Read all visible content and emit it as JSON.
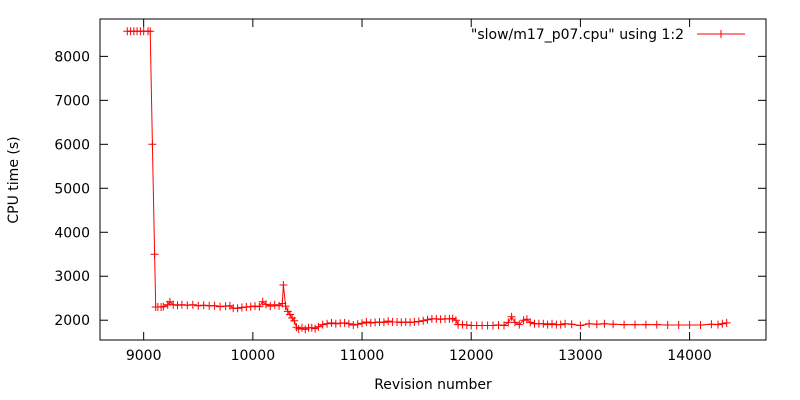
{
  "chart_data": {
    "type": "line",
    "title": "",
    "xlabel": "Revision number",
    "ylabel": "CPU time (s)",
    "xlim": [
      8600,
      14700
    ],
    "ylim": [
      1550,
      8850
    ],
    "xticks": [
      9000,
      10000,
      11000,
      12000,
      13000,
      14000
    ],
    "yticks": [
      2000,
      3000,
      4000,
      5000,
      6000,
      7000,
      8000
    ],
    "grid": false,
    "legend_position": "top-right",
    "series": [
      {
        "name": "\"slow/m17_p07.cpu\" using 1:2",
        "color": "#ff0000",
        "marker": "plus",
        "points": [
          [
            8850,
            8570
          ],
          [
            8880,
            8570
          ],
          [
            8910,
            8570
          ],
          [
            8940,
            8570
          ],
          [
            8970,
            8570
          ],
          [
            9000,
            8570
          ],
          [
            9040,
            8570
          ],
          [
            9060,
            8570
          ],
          [
            9080,
            6000
          ],
          [
            9100,
            3500
          ],
          [
            9110,
            2300
          ],
          [
            9130,
            2300
          ],
          [
            9160,
            2300
          ],
          [
            9180,
            2310
          ],
          [
            9220,
            2350
          ],
          [
            9240,
            2420
          ],
          [
            9270,
            2350
          ],
          [
            9310,
            2340
          ],
          [
            9350,
            2350
          ],
          [
            9400,
            2340
          ],
          [
            9450,
            2350
          ],
          [
            9500,
            2330
          ],
          [
            9550,
            2340
          ],
          [
            9600,
            2330
          ],
          [
            9650,
            2330
          ],
          [
            9700,
            2310
          ],
          [
            9750,
            2320
          ],
          [
            9790,
            2330
          ],
          [
            9820,
            2270
          ],
          [
            9860,
            2270
          ],
          [
            9900,
            2290
          ],
          [
            9940,
            2300
          ],
          [
            9980,
            2310
          ],
          [
            10020,
            2320
          ],
          [
            10060,
            2310
          ],
          [
            10090,
            2420
          ],
          [
            10120,
            2360
          ],
          [
            10160,
            2320
          ],
          [
            10200,
            2350
          ],
          [
            10240,
            2330
          ],
          [
            10270,
            2380
          ],
          [
            10280,
            2800
          ],
          [
            10300,
            2320
          ],
          [
            10320,
            2200
          ],
          [
            10340,
            2130
          ],
          [
            10360,
            2050
          ],
          [
            10380,
            1990
          ],
          [
            10400,
            1840
          ],
          [
            10420,
            1800
          ],
          [
            10450,
            1830
          ],
          [
            10480,
            1790
          ],
          [
            10510,
            1830
          ],
          [
            10540,
            1830
          ],
          [
            10570,
            1810
          ],
          [
            10600,
            1850
          ],
          [
            10640,
            1900
          ],
          [
            10680,
            1920
          ],
          [
            10720,
            1940
          ],
          [
            10760,
            1920
          ],
          [
            10800,
            1930
          ],
          [
            10840,
            1940
          ],
          [
            10880,
            1920
          ],
          [
            10920,
            1890
          ],
          [
            10960,
            1910
          ],
          [
            11000,
            1930
          ],
          [
            11040,
            1960
          ],
          [
            11080,
            1940
          ],
          [
            11120,
            1950
          ],
          [
            11160,
            1960
          ],
          [
            11200,
            1950
          ],
          [
            11240,
            1980
          ],
          [
            11280,
            1960
          ],
          [
            11320,
            1960
          ],
          [
            11360,
            1950
          ],
          [
            11400,
            1960
          ],
          [
            11440,
            1950
          ],
          [
            11480,
            1960
          ],
          [
            11520,
            1970
          ],
          [
            11560,
            1990
          ],
          [
            11600,
            2010
          ],
          [
            11640,
            2030
          ],
          [
            11680,
            2030
          ],
          [
            11720,
            2020
          ],
          [
            11760,
            2030
          ],
          [
            11800,
            2030
          ],
          [
            11830,
            2040
          ],
          [
            11860,
            2000
          ],
          [
            11880,
            1900
          ],
          [
            11920,
            1900
          ],
          [
            11960,
            1890
          ],
          [
            12000,
            1880
          ],
          [
            12050,
            1880
          ],
          [
            12100,
            1880
          ],
          [
            12150,
            1880
          ],
          [
            12200,
            1880
          ],
          [
            12250,
            1890
          ],
          [
            12300,
            1880
          ],
          [
            12340,
            1950
          ],
          [
            12370,
            2080
          ],
          [
            12400,
            1950
          ],
          [
            12440,
            1900
          ],
          [
            12480,
            2000
          ],
          [
            12510,
            2020
          ],
          [
            12540,
            1950
          ],
          [
            12580,
            1920
          ],
          [
            12620,
            1920
          ],
          [
            12660,
            1920
          ],
          [
            12700,
            1900
          ],
          [
            12740,
            1920
          ],
          [
            12780,
            1900
          ],
          [
            12820,
            1900
          ],
          [
            12860,
            1920
          ],
          [
            12920,
            1910
          ],
          [
            13000,
            1880
          ],
          [
            13080,
            1920
          ],
          [
            13150,
            1910
          ],
          [
            13220,
            1920
          ],
          [
            13300,
            1910
          ],
          [
            13400,
            1900
          ],
          [
            13500,
            1900
          ],
          [
            13600,
            1900
          ],
          [
            13700,
            1900
          ],
          [
            13800,
            1890
          ],
          [
            13900,
            1890
          ],
          [
            14000,
            1890
          ],
          [
            14100,
            1890
          ],
          [
            14200,
            1910
          ],
          [
            14260,
            1900
          ],
          [
            14300,
            1920
          ],
          [
            14340,
            1940
          ]
        ]
      }
    ]
  }
}
